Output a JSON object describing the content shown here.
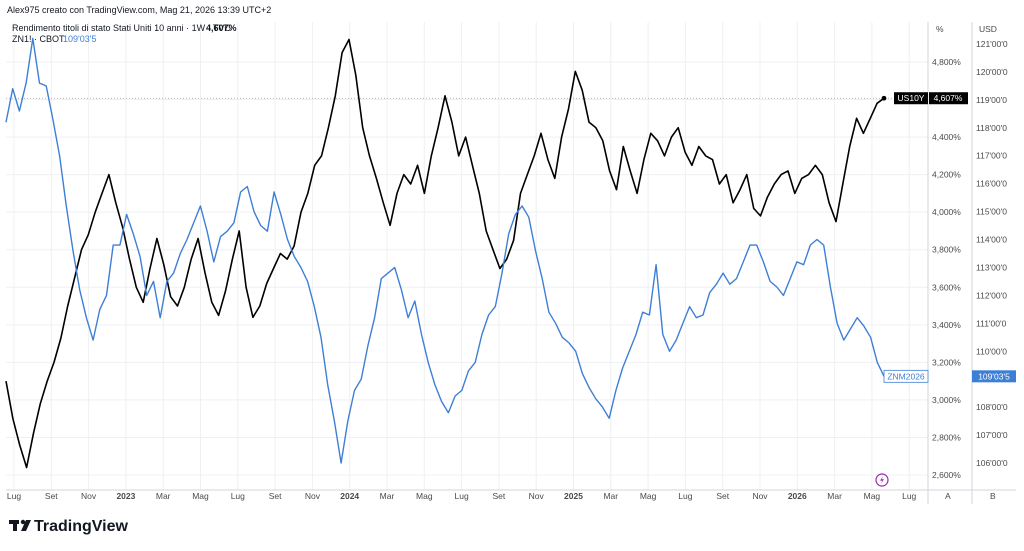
{
  "header": {
    "author_line": "Alex975 creato con TradingView.com, Mag 21, 2026 13:39 UTC+2",
    "series1_label": "Rendimento titoli di stato Stati Uniti 10 anni · 1W · TVC",
    "series1_value": "4,607%",
    "series2_label": "ZN1! · CBOT",
    "series2_value": "109'03'5"
  },
  "footer": {
    "logo_text": "TradingView"
  },
  "chart_data": {
    "type": "line",
    "title": "",
    "x_ticks": [
      "Lug",
      "Set",
      "Nov",
      "2023",
      "Mar",
      "Mag",
      "Lug",
      "Set",
      "Nov",
      "2024",
      "Mar",
      "Mag",
      "Lug",
      "Set",
      "Nov",
      "2025",
      "Mar",
      "Mag",
      "Lug",
      "Set",
      "Nov",
      "2026",
      "Mar",
      "Mag",
      "Lug"
    ],
    "x_year_ticks": [
      "2023",
      "2024",
      "2025",
      "2026"
    ],
    "scale_buttons": [
      "A",
      "B"
    ],
    "left_axis": {
      "unit": "%",
      "ylim": [
        2.5,
        5.0
      ],
      "ticks": [
        "4,800%",
        "4,600%",
        "4,400%",
        "4,200%",
        "4,000%",
        "3,800%",
        "3,600%",
        "3,400%",
        "3,200%",
        "3,000%",
        "2,800%",
        "2,600%"
      ],
      "tick_values": [
        4.8,
        4.6,
        4.4,
        4.2,
        4.0,
        3.8,
        3.6,
        3.4,
        3.2,
        3.0,
        2.8,
        2.6
      ]
    },
    "right_axis": {
      "unit": "USD",
      "ylim": [
        105.5,
        121.7
      ],
      "ticks": [
        "121'00'0",
        "120'00'0",
        "119'00'0",
        "118'00'0",
        "117'00'0",
        "116'00'0",
        "115'00'0",
        "114'00'0",
        "113'00'0",
        "112'00'0",
        "111'00'0",
        "110'00'0",
        "109'00'0",
        "108'00'0",
        "107'00'0",
        "106'00'0"
      ],
      "tick_values": [
        121,
        120,
        119,
        118,
        117,
        116,
        115,
        114,
        113,
        112,
        111,
        110,
        109,
        108,
        107,
        106
      ]
    },
    "series": [
      {
        "name": "US10Y",
        "axis": "left",
        "color": "#000000",
        "last_label": "4,607%",
        "values": [
          3.1,
          2.9,
          2.76,
          2.64,
          2.82,
          2.98,
          3.1,
          3.2,
          3.33,
          3.5,
          3.65,
          3.8,
          3.88,
          4.0,
          4.1,
          4.2,
          4.05,
          3.92,
          3.75,
          3.6,
          3.52,
          3.7,
          3.86,
          3.72,
          3.55,
          3.5,
          3.6,
          3.75,
          3.86,
          3.68,
          3.52,
          3.45,
          3.58,
          3.75,
          3.9,
          3.6,
          3.44,
          3.5,
          3.62,
          3.7,
          3.78,
          3.75,
          3.82,
          4.0,
          4.1,
          4.25,
          4.3,
          4.45,
          4.62,
          4.85,
          4.92,
          4.73,
          4.45,
          4.3,
          4.18,
          4.05,
          3.93,
          4.1,
          4.2,
          4.15,
          4.25,
          4.1,
          4.3,
          4.45,
          4.62,
          4.48,
          4.3,
          4.4,
          4.25,
          4.1,
          3.9,
          3.8,
          3.7,
          3.75,
          3.85,
          4.1,
          4.2,
          4.3,
          4.42,
          4.28,
          4.18,
          4.4,
          4.55,
          4.75,
          4.65,
          4.48,
          4.45,
          4.38,
          4.22,
          4.12,
          4.35,
          4.22,
          4.1,
          4.28,
          4.42,
          4.38,
          4.3,
          4.4,
          4.45,
          4.32,
          4.25,
          4.35,
          4.3,
          4.28,
          4.15,
          4.2,
          4.05,
          4.12,
          4.2,
          4.02,
          3.98,
          4.08,
          4.15,
          4.2,
          4.22,
          4.1,
          4.18,
          4.2,
          4.25,
          4.2,
          4.05,
          3.95,
          4.15,
          4.35,
          4.5,
          4.42,
          4.5,
          4.58,
          4.607
        ]
      },
      {
        "name": "ZNM2026",
        "axis": "right",
        "color": "#3e7fd6",
        "last_label": "109'03'5",
        "values": [
          118.2,
          119.4,
          118.6,
          119.6,
          121.2,
          119.6,
          119.5,
          118.3,
          117.0,
          115.2,
          113.6,
          112.2,
          111.2,
          110.4,
          111.5,
          112.0,
          113.8,
          113.8,
          114.9,
          114.2,
          113.4,
          112.0,
          112.5,
          111.2,
          112.5,
          112.8,
          113.5,
          114.0,
          114.6,
          115.2,
          114.3,
          113.2,
          114.1,
          114.3,
          114.6,
          115.7,
          115.9,
          115.0,
          114.5,
          114.3,
          115.7,
          114.9,
          114.0,
          113.4,
          113.0,
          112.5,
          111.6,
          110.5,
          108.8,
          107.5,
          106.0,
          107.5,
          108.6,
          109.0,
          110.2,
          111.2,
          112.6,
          112.8,
          113.0,
          112.2,
          111.2,
          111.8,
          110.6,
          109.6,
          108.8,
          108.2,
          107.8,
          108.4,
          108.6,
          109.3,
          109.6,
          110.6,
          111.3,
          111.6,
          112.8,
          114.2,
          114.9,
          115.2,
          114.8,
          113.6,
          112.6,
          111.4,
          111.0,
          110.5,
          110.3,
          110.0,
          109.2,
          108.7,
          108.3,
          108.0,
          107.6,
          108.6,
          109.4,
          110.0,
          110.6,
          111.4,
          111.3,
          113.1,
          110.6,
          110.0,
          110.4,
          111.0,
          111.6,
          111.2,
          111.3,
          112.1,
          112.4,
          112.8,
          112.4,
          112.6,
          113.2,
          113.8,
          113.8,
          113.2,
          112.5,
          112.3,
          112.0,
          112.6,
          113.2,
          113.1,
          113.8,
          114.0,
          113.8,
          112.3,
          111.0,
          110.4,
          110.8,
          111.2,
          110.9,
          110.5,
          109.6,
          109.103
        ]
      }
    ],
    "grid": true,
    "crosshair_label": "US10Y"
  }
}
